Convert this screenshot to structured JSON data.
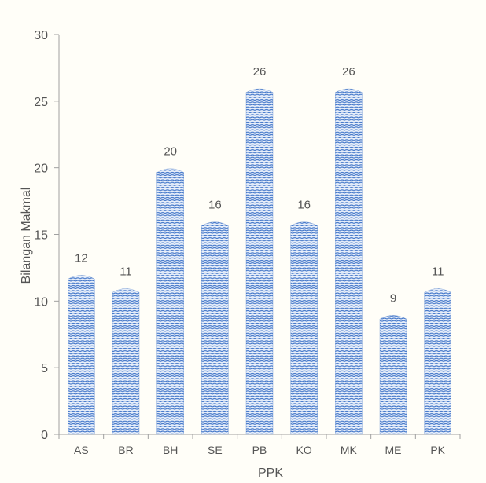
{
  "chart_data": {
    "type": "bar",
    "title": "",
    "xlabel": "PPK",
    "ylabel": "Bilangan Makmal",
    "categories": [
      "AS",
      "BR",
      "BH",
      "SE",
      "PB",
      "KO",
      "MK",
      "ME",
      "PK"
    ],
    "values": [
      12,
      11,
      20,
      16,
      26,
      16,
      26,
      9,
      11
    ],
    "data_labels": [
      "12",
      "11",
      "20",
      "16",
      "26",
      "16",
      "26",
      "9",
      "11"
    ],
    "ylim": [
      0,
      30
    ],
    "yticks": [
      0,
      5,
      10,
      15,
      20,
      25,
      30
    ],
    "grid": false,
    "legend": "none",
    "bar_pattern": "stacked arcs",
    "colors": {
      "bar_fill": "#e8effa",
      "bar_stroke": "#3f74c8",
      "axis": "#a0a0a0",
      "text": "#555555"
    }
  }
}
